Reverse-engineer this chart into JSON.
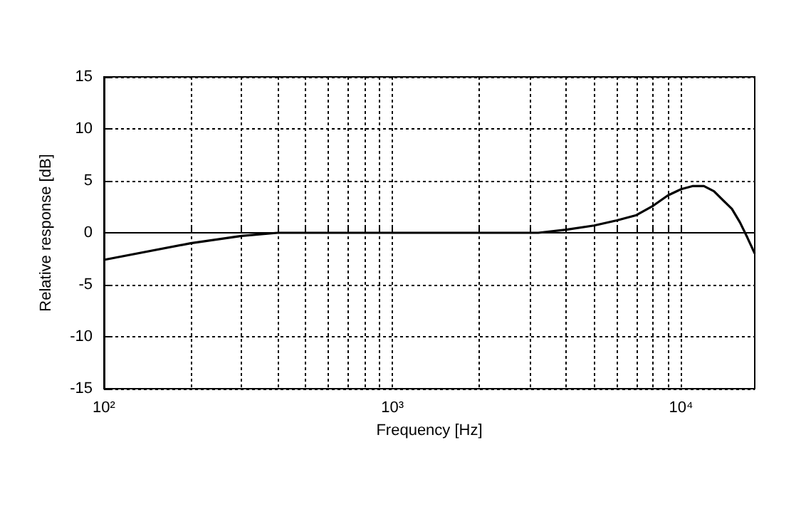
{
  "chart_data": {
    "type": "line",
    "xlabel": "Frequency [Hz]",
    "ylabel": "Relative response [dB]",
    "log": "x",
    "grid": true,
    "line_style": "solid",
    "marker": "none",
    "xlim": [
      100,
      18000
    ],
    "ylim": [
      -15,
      15
    ],
    "xticks": [
      {
        "value": 100,
        "label": "10²"
      },
      {
        "value": 200,
        "label": null
      },
      {
        "value": 300,
        "label": null
      },
      {
        "value": 400,
        "label": null
      },
      {
        "value": 500,
        "label": null
      },
      {
        "value": 600,
        "label": null
      },
      {
        "value": 700,
        "label": null
      },
      {
        "value": 800,
        "label": null
      },
      {
        "value": 900,
        "label": null
      },
      {
        "value": 1000,
        "label": "10³"
      },
      {
        "value": 2000,
        "label": null
      },
      {
        "value": 3000,
        "label": null
      },
      {
        "value": 4000,
        "label": null
      },
      {
        "value": 5000,
        "label": null
      },
      {
        "value": 6000,
        "label": null
      },
      {
        "value": 7000,
        "label": null
      },
      {
        "value": 8000,
        "label": null
      },
      {
        "value": 9000,
        "label": null
      },
      {
        "value": 10000,
        "label": "10⁴"
      }
    ],
    "yticks": [
      -15,
      -10,
      -5,
      0,
      5,
      10,
      15
    ],
    "x": [
      100,
      200,
      300,
      400,
      1000,
      3200,
      4000,
      5000,
      6000,
      7000,
      8000,
      9000,
      10000,
      11000,
      12000,
      13000,
      15000,
      16000,
      17000,
      18000
    ],
    "series": [
      {
        "color": "#000000",
        "values": [
          -2.6,
          -1.0,
          -0.3,
          0,
          0,
          0,
          0.3,
          0.7,
          1.2,
          1.7,
          2.6,
          3.6,
          4.2,
          4.5,
          4.5,
          4.0,
          2.3,
          1.0,
          -0.5,
          -2.0
        ]
      }
    ]
  }
}
